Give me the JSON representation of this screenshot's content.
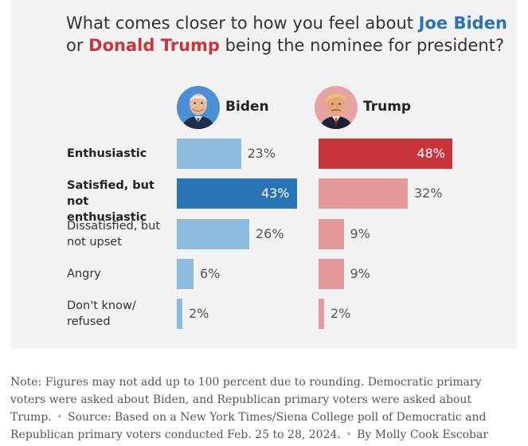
{
  "title": {
    "line1_prefix": "What comes closer to how you feel about ",
    "biden_name": "Joe Biden",
    "line2_prefix": "or ",
    "trump_name": "Donald Trump",
    "line2_suffix": " being the nominee for president?"
  },
  "colors": {
    "biden_name": "#2a73b5",
    "trump_name": "#c8363b",
    "biden_bar": "#8dbbdf",
    "biden_highlight": "#2a73b5",
    "trump_bar": "#e49a9b",
    "trump_highlight": "#c8363b"
  },
  "candidates": {
    "biden": {
      "label": "Biden",
      "photo_icon": "biden-portrait-icon"
    },
    "trump": {
      "label": "Trump",
      "photo_icon": "trump-portrait-icon"
    }
  },
  "chart_data": {
    "type": "bar",
    "title": "What comes closer to how you feel about Joe Biden or Donald Trump being the nominee for president?",
    "categories": [
      "Enthusiastic",
      "Satisfied, but not enthusiastic",
      "Dissatisfied, but not upset",
      "Angry",
      "Don't know/ refused"
    ],
    "category_lines": [
      [
        "Enthusiastic"
      ],
      [
        "Satisfied, but",
        "not enthusiastic"
      ],
      [
        "Dissatisfied, but",
        "not upset"
      ],
      [
        "Angry"
      ],
      [
        "Don't know/",
        "refused"
      ]
    ],
    "bold_categories": [
      0,
      1
    ],
    "series": [
      {
        "name": "Biden",
        "values": [
          23,
          43,
          26,
          6,
          2
        ],
        "labels": [
          "23%",
          "43%",
          "26%",
          "6%",
          "2%"
        ],
        "highlight_index": 1
      },
      {
        "name": "Trump",
        "values": [
          48,
          32,
          9,
          9,
          2
        ],
        "labels": [
          "48%",
          "32%",
          "9%",
          "9%",
          "2%"
        ],
        "highlight_index": 0
      }
    ],
    "unit": "%"
  },
  "note": {
    "text": "Note: Figures may not add up to 100 percent due to rounding. Democratic primary voters were asked about Biden, and Republican primary voters were asked about Trump.",
    "source": "Source: Based on a New York Times/Siena College poll of Democratic and Republican primary voters conducted Feb. 25 to 28, 2024.",
    "byline": "By Molly Cook Escobar"
  }
}
